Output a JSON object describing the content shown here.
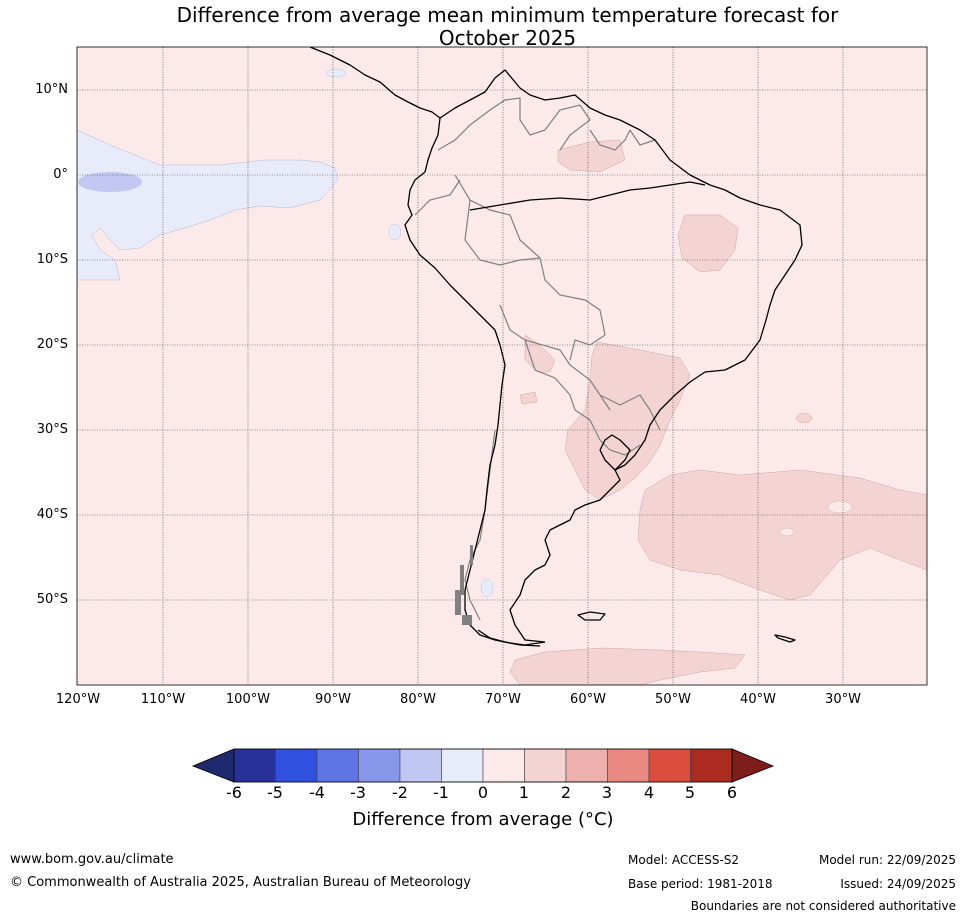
{
  "title": {
    "line1": "Difference from average mean minimum temperature forecast for",
    "line2": "October 2025"
  },
  "map": {
    "lat_labels": [
      "10°N",
      "0°",
      "10°S",
      "20°S",
      "30°S",
      "40°S",
      "50°S"
    ],
    "lon_labels": [
      "120°W",
      "110°W",
      "100°W",
      "90°W",
      "80°W",
      "70°W",
      "60°W",
      "50°W",
      "40°W",
      "30°W"
    ],
    "colors": {
      "band_0_1": "#fbeae9",
      "band_1_2": "#f3d4d2",
      "band_m1_0": "#e8ebfa",
      "band_m2_m1": "#c2c8f2",
      "coast": "#000000",
      "border": "#808080"
    }
  },
  "colorbar": {
    "ticks": [
      "-6",
      "-5",
      "-4",
      "-3",
      "-2",
      "-1",
      "0",
      "1",
      "2",
      "3",
      "4",
      "5",
      "6"
    ],
    "colors": [
      "#28319a",
      "#3050e0",
      "#5e73e4",
      "#8797ea",
      "#c1c7f3",
      "#e8ebfa",
      "#fbeae9",
      "#f4d4d3",
      "#eeb0ac",
      "#e88a82",
      "#dc4d40",
      "#ab2b21"
    ],
    "under_color": "#1f2a6e",
    "over_color": "#7d1e1a",
    "label": "Difference from average (°C)"
  },
  "footer": {
    "website": "www.bom.gov.au/climate",
    "copyright": "© Commonwealth of Australia 2025, Australian Bureau of Meteorology",
    "model": "Model: ACCESS-S2",
    "base_period": "Base period: 1981-2018",
    "model_run": "Model run: 22/09/2025",
    "issued": "Issued: 24/09/2025",
    "disclaimer": "Boundaries are not considered authoritative"
  }
}
